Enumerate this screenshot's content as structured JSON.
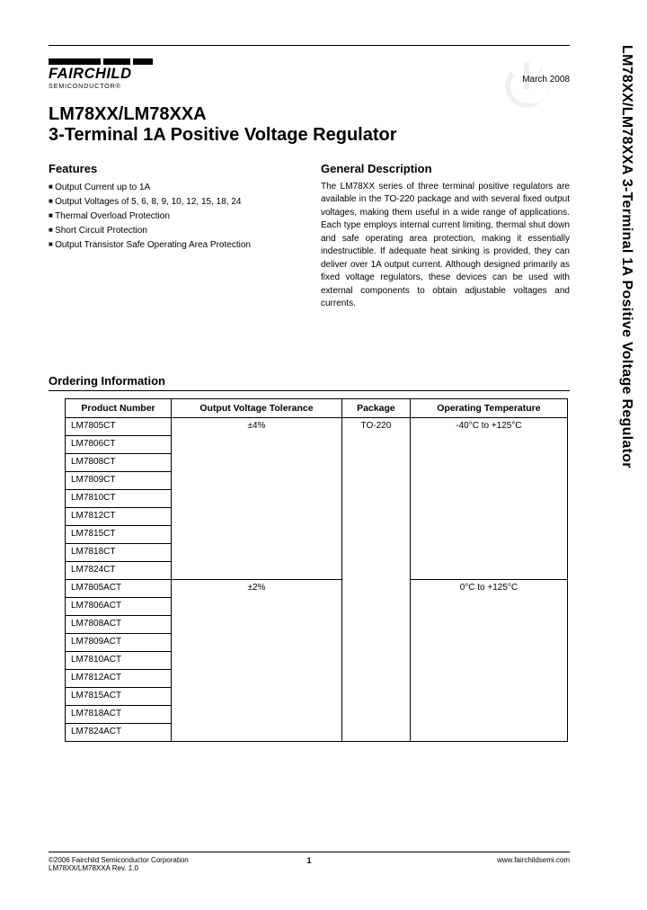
{
  "logo": {
    "name": "FAIRCHILD",
    "sub": "SEMICONDUCTOR®"
  },
  "date": "March 2008",
  "title": {
    "line1": "LM78XX/LM78XXA",
    "line2": "3-Terminal 1A Positive Voltage Regulator"
  },
  "side_title": "LM78XX/LM78XXA  3-Terminal 1A Positive Voltage Regulator",
  "features": {
    "heading": "Features",
    "items": [
      "Output Current up to 1A",
      "Output Voltages of 5, 6, 8, 9, 10, 12, 15, 18, 24",
      "Thermal Overload Protection",
      "Short Circuit Protection",
      "Output Transistor Safe Operating Area Protection"
    ]
  },
  "description": {
    "heading": "General Description",
    "body": "The LM78XX series of three terminal positive regulators are available in the TO-220 package and with several fixed output voltages, making them useful in a wide range of applications. Each type employs internal current limiting, thermal shut down and safe operating area protection, making it essentially indestructible. If adequate heat sinking is provided, they can deliver over 1A output current. Although designed primarily as fixed voltage regulators, these devices can be used with external components to obtain adjustable voltages and currents."
  },
  "ordering": {
    "heading": "Ordering Information",
    "columns": [
      "Product Number",
      "Output Voltage Tolerance",
      "Package",
      "Operating Temperature"
    ],
    "groups": [
      {
        "tolerance": "±4%",
        "package": "TO-220",
        "temp": "-40°C to +125°C",
        "products": [
          "LM7805CT",
          "LM7806CT",
          "LM7808CT",
          "LM7809CT",
          "LM7810CT",
          "LM7812CT",
          "LM7815CT",
          "LM7818CT",
          "LM7824CT"
        ]
      },
      {
        "tolerance": "±2%",
        "package": "",
        "temp": "0°C to +125°C",
        "products": [
          "LM7805ACT",
          "LM7806ACT",
          "LM7808ACT",
          "LM7809ACT",
          "LM7810ACT",
          "LM7812ACT",
          "LM7815ACT",
          "LM7818ACT",
          "LM7824ACT"
        ]
      }
    ]
  },
  "footer": {
    "left1": "©2006 Fairchild Semiconductor Corporation",
    "left2": "LM78XX/LM78XXA Rev. 1.0",
    "page": "1",
    "right": "www.fairchildsemi.com"
  },
  "colors": {
    "text": "#000000",
    "background": "#ffffff",
    "watermark": "#cccccc"
  }
}
